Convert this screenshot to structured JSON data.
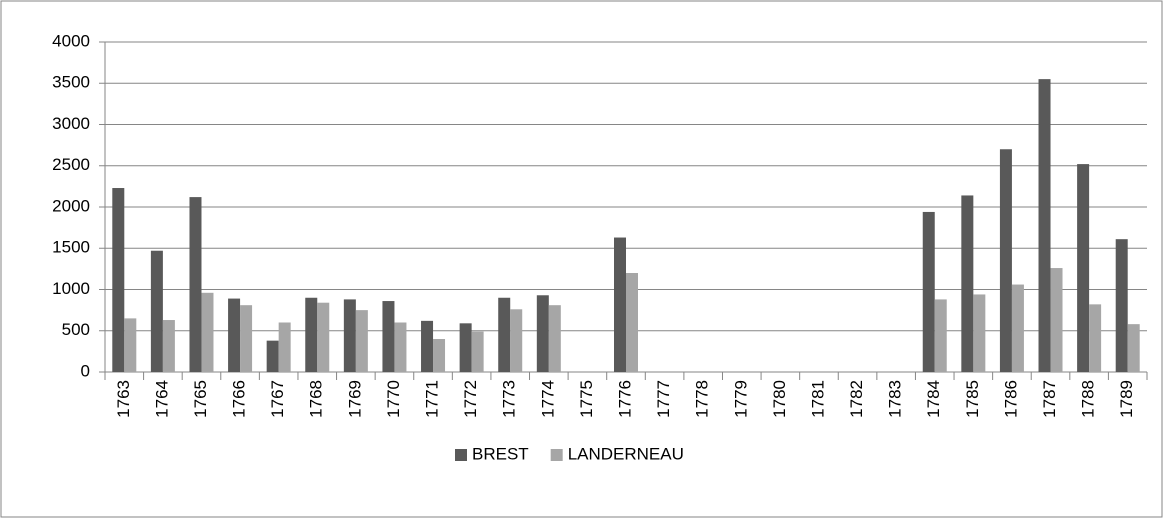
{
  "chart_data": {
    "type": "bar",
    "categories": [
      "1763",
      "1764",
      "1765",
      "1766",
      "1767",
      "1768",
      "1769",
      "1770",
      "1771",
      "1772",
      "1773",
      "1774",
      "1775",
      "1776",
      "1777",
      "1778",
      "1779",
      "1780",
      "1781",
      "1782",
      "1783",
      "1784",
      "1785",
      "1786",
      "1787",
      "1788",
      "1789"
    ],
    "series": [
      {
        "name": "BREST",
        "color": "#595959",
        "values": [
          2230,
          1470,
          2120,
          890,
          380,
          900,
          880,
          860,
          620,
          590,
          900,
          930,
          null,
          1630,
          null,
          null,
          null,
          null,
          null,
          null,
          null,
          1940,
          2140,
          2700,
          3550,
          2520,
          1610
        ]
      },
      {
        "name": "LANDERNEAU",
        "color": "#a6a6a6",
        "values": [
          650,
          630,
          960,
          810,
          600,
          840,
          750,
          600,
          400,
          490,
          760,
          810,
          null,
          1200,
          null,
          null,
          null,
          null,
          null,
          null,
          null,
          880,
          940,
          1060,
          1260,
          820,
          580
        ]
      }
    ],
    "ylim": [
      0,
      4000
    ],
    "yticks": [
      0,
      500,
      1000,
      1500,
      2000,
      2500,
      3000,
      3500,
      4000
    ],
    "grid": true,
    "legend": "bottom"
  }
}
